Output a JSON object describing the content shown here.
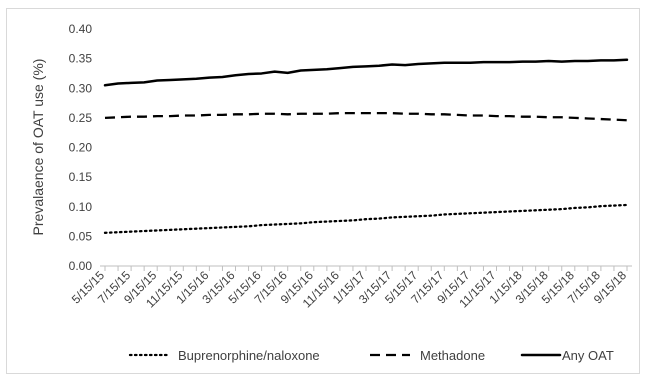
{
  "chart_data": {
    "type": "line",
    "title": "",
    "xlabel": "",
    "ylabel": "Prevalaence of OAT use (%)",
    "ylim": [
      0,
      0.4
    ],
    "yticks": [
      "0.00",
      "0.05",
      "0.10",
      "0.15",
      "0.20",
      "0.25",
      "0.30",
      "0.35",
      "0.40"
    ],
    "grid": false,
    "legend_position": "bottom",
    "x_tick_labels": [
      "5/15/15",
      "7/15/15",
      "9/15/15",
      "11/15/15",
      "1/15/16",
      "3/15/16",
      "5/15/16",
      "7/15/16",
      "9/15/16",
      "11/15/16",
      "1/15/17",
      "3/15/17",
      "5/15/17",
      "7/15/17",
      "9/15/17",
      "11/15/17",
      "1/15/18",
      "3/15/18",
      "5/15/18",
      "7/15/18",
      "9/15/18"
    ],
    "x": [
      "5/15/15",
      "6/15/15",
      "7/15/15",
      "8/15/15",
      "9/15/15",
      "10/15/15",
      "11/15/15",
      "12/15/15",
      "1/15/16",
      "2/15/16",
      "3/15/16",
      "4/15/16",
      "5/15/16",
      "6/15/16",
      "7/15/16",
      "8/15/16",
      "9/15/16",
      "10/15/16",
      "11/15/16",
      "12/15/16",
      "1/15/17",
      "2/15/17",
      "3/15/17",
      "4/15/17",
      "5/15/17",
      "6/15/17",
      "7/15/17",
      "8/15/17",
      "9/15/17",
      "10/15/17",
      "11/15/17",
      "12/15/17",
      "1/15/18",
      "2/15/18",
      "3/15/18",
      "4/15/18",
      "5/15/18",
      "6/15/18",
      "7/15/18",
      "8/15/18",
      "9/15/18"
    ],
    "series": [
      {
        "name": "Buprenorphine/naloxone",
        "style": "dotted",
        "color": "#000000",
        "values": [
          0.056,
          0.057,
          0.058,
          0.059,
          0.06,
          0.061,
          0.062,
          0.063,
          0.064,
          0.065,
          0.066,
          0.067,
          0.069,
          0.07,
          0.071,
          0.072,
          0.074,
          0.075,
          0.076,
          0.077,
          0.079,
          0.08,
          0.082,
          0.083,
          0.084,
          0.085,
          0.087,
          0.088,
          0.089,
          0.09,
          0.091,
          0.092,
          0.093,
          0.094,
          0.095,
          0.096,
          0.098,
          0.099,
          0.101,
          0.102,
          0.103
        ]
      },
      {
        "name": "Methadone",
        "style": "dashed",
        "color": "#000000",
        "values": [
          0.25,
          0.251,
          0.252,
          0.252,
          0.253,
          0.253,
          0.254,
          0.254,
          0.255,
          0.255,
          0.256,
          0.256,
          0.257,
          0.257,
          0.256,
          0.257,
          0.257,
          0.257,
          0.258,
          0.258,
          0.258,
          0.258,
          0.258,
          0.257,
          0.257,
          0.256,
          0.256,
          0.255,
          0.254,
          0.254,
          0.253,
          0.253,
          0.252,
          0.252,
          0.251,
          0.251,
          0.25,
          0.249,
          0.248,
          0.247,
          0.246
        ]
      },
      {
        "name": "Any OAT",
        "style": "solid",
        "color": "#000000",
        "values": [
          0.305,
          0.308,
          0.309,
          0.31,
          0.313,
          0.314,
          0.315,
          0.316,
          0.318,
          0.319,
          0.322,
          0.324,
          0.325,
          0.328,
          0.326,
          0.33,
          0.331,
          0.332,
          0.334,
          0.336,
          0.337,
          0.338,
          0.34,
          0.339,
          0.341,
          0.342,
          0.343,
          0.343,
          0.343,
          0.344,
          0.344,
          0.344,
          0.345,
          0.345,
          0.346,
          0.345,
          0.346,
          0.346,
          0.347,
          0.347,
          0.348
        ]
      }
    ]
  }
}
